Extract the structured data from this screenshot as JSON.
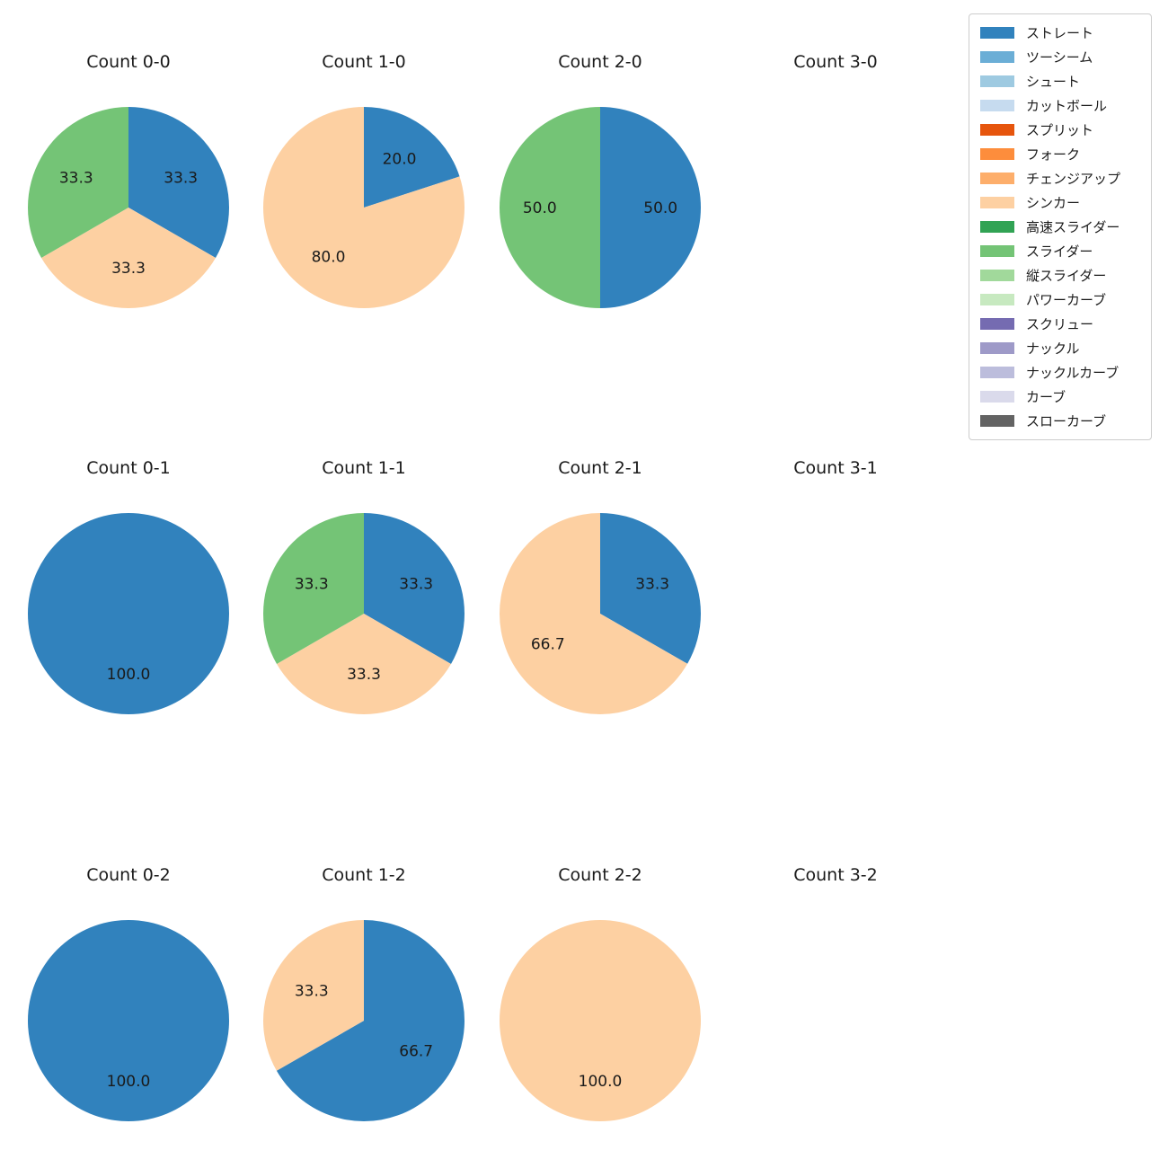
{
  "figure": {
    "background": "#ffffff",
    "text_color": "#1a1a1a"
  },
  "legend": {
    "position": "top-right",
    "border_color": "#cccccc",
    "items": [
      {
        "label": "ストレート",
        "color": "#3182bd"
      },
      {
        "label": "ツーシーム",
        "color": "#6baed6"
      },
      {
        "label": "シュート",
        "color": "#9ecae1"
      },
      {
        "label": "カットボール",
        "color": "#c6dbef"
      },
      {
        "label": "スプリット",
        "color": "#e6550d"
      },
      {
        "label": "フォーク",
        "color": "#fd8d3c"
      },
      {
        "label": "チェンジアップ",
        "color": "#fdae6b"
      },
      {
        "label": "シンカー",
        "color": "#fdd0a2"
      },
      {
        "label": "高速スライダー",
        "color": "#31a354"
      },
      {
        "label": "スライダー",
        "color": "#74c476"
      },
      {
        "label": "縦スライダー",
        "color": "#a1d99b"
      },
      {
        "label": "パワーカーブ",
        "color": "#c7e9c0"
      },
      {
        "label": "スクリュー",
        "color": "#756bb1"
      },
      {
        "label": "ナックル",
        "color": "#9e9ac8"
      },
      {
        "label": "ナックルカーブ",
        "color": "#bcbddc"
      },
      {
        "label": "カーブ",
        "color": "#dadaeb"
      },
      {
        "label": "スローカーブ",
        "color": "#636363"
      }
    ]
  },
  "chart_data": {
    "type": "pie",
    "unit": "percent",
    "start_angle_deg": 90,
    "direction": "clockwise",
    "label_format": ".1f",
    "label_radius_ratio": 0.6,
    "grid": {
      "rows": 3,
      "cols": 4
    },
    "charts": [
      {
        "title": "Count 0-0",
        "slices": [
          {
            "label": "ストレート",
            "value": 33.3
          },
          {
            "label": "シンカー",
            "value": 33.3
          },
          {
            "label": "スライダー",
            "value": 33.3
          }
        ]
      },
      {
        "title": "Count 1-0",
        "slices": [
          {
            "label": "ストレート",
            "value": 20.0
          },
          {
            "label": "シンカー",
            "value": 80.0
          }
        ]
      },
      {
        "title": "Count 2-0",
        "slices": [
          {
            "label": "ストレート",
            "value": 50.0
          },
          {
            "label": "スライダー",
            "value": 50.0
          }
        ]
      },
      {
        "title": "Count 3-0",
        "slices": []
      },
      {
        "title": "Count 0-1",
        "slices": [
          {
            "label": "ストレート",
            "value": 100.0
          }
        ]
      },
      {
        "title": "Count 1-1",
        "slices": [
          {
            "label": "ストレート",
            "value": 33.3
          },
          {
            "label": "シンカー",
            "value": 33.3
          },
          {
            "label": "スライダー",
            "value": 33.3
          }
        ]
      },
      {
        "title": "Count 2-1",
        "slices": [
          {
            "label": "ストレート",
            "value": 33.3
          },
          {
            "label": "シンカー",
            "value": 66.7
          }
        ]
      },
      {
        "title": "Count 3-1",
        "slices": []
      },
      {
        "title": "Count 0-2",
        "slices": [
          {
            "label": "ストレート",
            "value": 100.0
          }
        ]
      },
      {
        "title": "Count 1-2",
        "slices": [
          {
            "label": "ストレート",
            "value": 66.7
          },
          {
            "label": "シンカー",
            "value": 33.3
          }
        ]
      },
      {
        "title": "Count 2-2",
        "slices": [
          {
            "label": "シンカー",
            "value": 100.0
          }
        ]
      },
      {
        "title": "Count 3-2",
        "slices": []
      }
    ]
  }
}
